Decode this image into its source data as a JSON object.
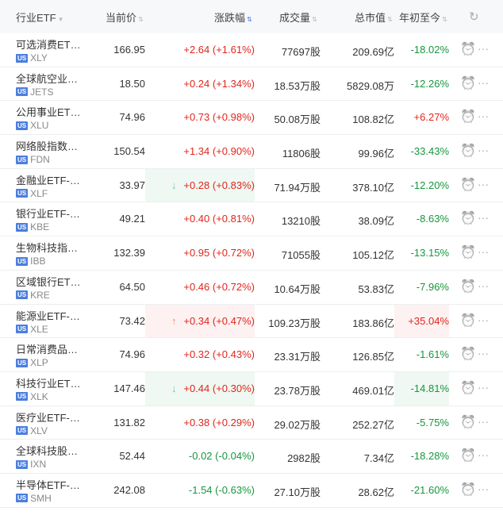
{
  "header": {
    "name": "行业ETF",
    "price": "当前价",
    "change": "涨跌幅",
    "volume": "成交量",
    "cap": "总市值",
    "ytd": "年初至今"
  },
  "market_badge": "US",
  "colors": {
    "up": "#e0261c",
    "down": "#16963d",
    "up_bg": "#fdf1f1",
    "down_bg": "#eff8f2"
  },
  "rows": [
    {
      "name": "可选消费ET…",
      "code": "XLY",
      "price": "166.95",
      "change": "+2.64 (+1.61%)",
      "volume": "77697股",
      "cap": "209.69亿",
      "ytd": "-18.02%",
      "ytd_dir": "down"
    },
    {
      "name": "全球航空业…",
      "code": "JETS",
      "price": "18.50",
      "change": "+0.24 (+1.34%)",
      "volume": "18.53万股",
      "cap": "5829.08万",
      "ytd": "-12.26%",
      "ytd_dir": "down"
    },
    {
      "name": "公用事业ET…",
      "code": "XLU",
      "price": "74.96",
      "change": "+0.73 (+0.98%)",
      "volume": "50.08万股",
      "cap": "108.82亿",
      "ytd": "+6.27%",
      "ytd_dir": "up"
    },
    {
      "name": "网络股指数…",
      "code": "FDN",
      "price": "150.54",
      "change": "+1.34 (+0.90%)",
      "volume": "11806股",
      "cap": "99.96亿",
      "ytd": "-33.43%",
      "ytd_dir": "down"
    },
    {
      "name": "金融业ETF-…",
      "code": "XLF",
      "price": "33.97",
      "change": "+0.28 (+0.83%)",
      "volume": "71.94万股",
      "cap": "378.10亿",
      "ytd": "-12.20%",
      "ytd_dir": "down",
      "flash": "down",
      "flash_ytd": false
    },
    {
      "name": "银行业ETF-…",
      "code": "KBE",
      "price": "49.21",
      "change": "+0.40 (+0.81%)",
      "volume": "13210股",
      "cap": "38.09亿",
      "ytd": "-8.63%",
      "ytd_dir": "down"
    },
    {
      "name": "生物科技指…",
      "code": "IBB",
      "price": "132.39",
      "change": "+0.95 (+0.72%)",
      "volume": "71055股",
      "cap": "105.12亿",
      "ytd": "-13.15%",
      "ytd_dir": "down"
    },
    {
      "name": "区域银行ET…",
      "code": "KRE",
      "price": "64.50",
      "change": "+0.46 (+0.72%)",
      "volume": "10.64万股",
      "cap": "53.83亿",
      "ytd": "-7.96%",
      "ytd_dir": "down"
    },
    {
      "name": "能源业ETF-…",
      "code": "XLE",
      "price": "73.42",
      "change": "+0.34 (+0.47%)",
      "volume": "109.23万股",
      "cap": "183.86亿",
      "ytd": "+35.04%",
      "ytd_dir": "up",
      "flash": "up",
      "flash_ytd": true
    },
    {
      "name": "日常消费品…",
      "code": "XLP",
      "price": "74.96",
      "change": "+0.32 (+0.43%)",
      "volume": "23.31万股",
      "cap": "126.85亿",
      "ytd": "-1.61%",
      "ytd_dir": "down"
    },
    {
      "name": "科技行业ET…",
      "code": "XLK",
      "price": "147.46",
      "change": "+0.44 (+0.30%)",
      "volume": "23.78万股",
      "cap": "469.01亿",
      "ytd": "-14.81%",
      "ytd_dir": "down",
      "flash": "down",
      "flash_ytd": true
    },
    {
      "name": "医疗业ETF-…",
      "code": "XLV",
      "price": "131.82",
      "change": "+0.38 (+0.29%)",
      "volume": "29.02万股",
      "cap": "252.27亿",
      "ytd": "-5.75%",
      "ytd_dir": "down"
    },
    {
      "name": "全球科技股…",
      "code": "IXN",
      "price": "52.44",
      "change": "-0.02 (-0.04%)",
      "volume": "2982股",
      "cap": "7.34亿",
      "ytd": "-18.28%",
      "ytd_dir": "down"
    },
    {
      "name": "半导体ETF-…",
      "code": "SMH",
      "price": "242.08",
      "change": "-1.54 (-0.63%)",
      "volume": "27.10万股",
      "cap": "28.62亿",
      "ytd": "-21.60%",
      "ytd_dir": "down"
    }
  ]
}
